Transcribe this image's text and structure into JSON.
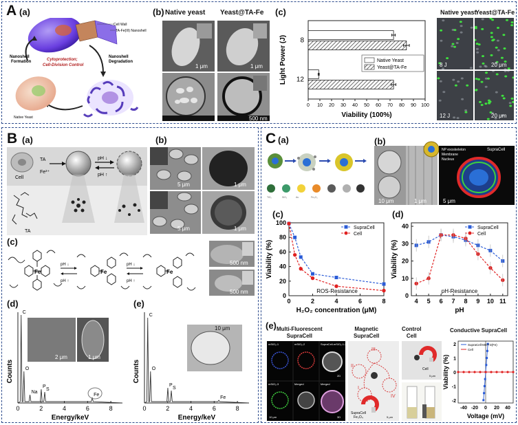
{
  "panelA": {
    "letter": "A",
    "a_label": "(a)",
    "b_label": "(b)",
    "c_label": "(c)",
    "cell_wall": "Cell Wall",
    "nanoshell": "TA-Fe(III) Nanoshell",
    "formation": "Nanoshell\nFormation",
    "degradation": "Nanoshell\nDegradation",
    "cyto": "Cytoprotection;\nCell-Division Control",
    "native_yeast_label": "Native Yeast",
    "b_native": "Native yeast",
    "b_ta": "Yeast@TA-Fe",
    "scale_1um": "1 μm",
    "scale_500nm": "500 nm",
    "fl_native": "Native yeast",
    "fl_ta": "Yeast@TA-Fe",
    "fl_8j": "8 J",
    "fl_12j": "12 J",
    "scale_20um": "20 μm"
  },
  "panelB": {
    "letter": "B",
    "a_label": "(a)",
    "b_label": "(b)",
    "c_label": "(c)",
    "d_label": "(d)",
    "e_label": "(e)",
    "ta": "TA",
    "fe": "Fe",
    "cell": "Cell",
    "ph_down": "pH ↓",
    "ph_up": "pH ↑",
    "scale_5um": "5 μm",
    "scale_1um": "1 μm",
    "scale_500nm": "500 nm",
    "scale_2um": "2 μm",
    "scale_10um": "10 μm",
    "counts": "Counts",
    "energy": "Energy/keV",
    "eds_c": "C",
    "eds_o": "O",
    "eds_na": "Na",
    "eds_p": "P",
    "eds_s": "S",
    "eds_fe": "Fe",
    "ticks": [
      "0",
      "2",
      "4",
      "6",
      "8"
    ]
  },
  "panelC": {
    "letter": "C",
    "a_label": "(a)",
    "b_label": "(b)",
    "c_label": "(c)",
    "d_label": "(d)",
    "e_label": "(e)",
    "supracell_tag": "SupraCell",
    "np_exo": "NP exoskeleton",
    "membrane": "Membrane",
    "nucleus": "Nucleus",
    "scale_5um": "5 μm",
    "scale_10um": "10 μm",
    "scale_1um": "1 μm",
    "e_multi": "Multi-Fluorescent\nSupraCell",
    "e_magnetic": "Magnetic\nSupraCell",
    "e_control": "Control\nCell",
    "e_conductive": "Conductive SupraCell",
    "mag_cell": "SupraCell\nFe₃O₄",
    "roman": [
      "I",
      "II",
      "III",
      "IV"
    ]
  },
  "chart_data": [
    {
      "id": "A-c",
      "type": "bar",
      "orientation": "horizontal",
      "categories": [
        "8",
        "12"
      ],
      "series": [
        {
          "name": "Native Yeast",
          "values": [
            73,
            9
          ],
          "errors": [
            1.5,
            0.5
          ],
          "color": "#ffffff"
        },
        {
          "name": "Yeast@TA-Fe",
          "values": [
            84,
            73
          ],
          "errors": [
            2.5,
            2
          ]
        }
      ],
      "xlabel": "Viability (100%)",
      "ylabel": "Light Power (J)",
      "xlim": [
        0,
        100
      ],
      "xticks": [
        "0",
        "10",
        "20",
        "30",
        "40",
        "50",
        "60",
        "70",
        "80",
        "90",
        "100"
      ],
      "legend": "center-right"
    },
    {
      "id": "C-c",
      "type": "line",
      "x": [
        0,
        0.5,
        1,
        2,
        4,
        8
      ],
      "series": [
        {
          "name": "SupraCell",
          "values": [
            99,
            80,
            53,
            30,
            25,
            16
          ],
          "color": "#2a5bd7"
        },
        {
          "name": "Cell",
          "values": [
            99,
            56,
            37,
            24,
            13,
            7
          ],
          "color": "#e02020"
        }
      ],
      "xlabel": "H₂O₂ concentration (μM)",
      "ylabel": "Viability (%)",
      "xticks": [
        "0",
        "2",
        "4",
        "6",
        "8"
      ],
      "yticks": [
        "0",
        "20",
        "40",
        "60",
        "80",
        "100"
      ],
      "xlim": [
        0,
        8
      ],
      "ylim": [
        0,
        100
      ],
      "annotation": "ROS-Resistance",
      "legend": "top-right"
    },
    {
      "id": "C-d",
      "type": "line",
      "x": [
        4,
        5,
        6,
        7,
        8,
        9,
        10,
        11
      ],
      "series": [
        {
          "name": "SupraCell",
          "values": [
            29,
            31,
            35,
            34,
            32,
            29,
            26,
            20
          ],
          "color": "#2a5bd7"
        },
        {
          "name": "Cell",
          "values": [
            7,
            10,
            35,
            35,
            33,
            24,
            16,
            9
          ],
          "color": "#e02020"
        }
      ],
      "xlabel": "pH",
      "ylabel": "Viability (%)",
      "xticks": [
        "4",
        "5",
        "6",
        "7",
        "8",
        "9",
        "10",
        "11"
      ],
      "yticks": [
        "0",
        "10",
        "20",
        "30",
        "40"
      ],
      "xlim": [
        3.6,
        11.4
      ],
      "ylim": [
        0,
        42
      ],
      "annotation": "pH-Resistance",
      "legend": "top-right"
    },
    {
      "id": "C-e-conductive",
      "type": "line",
      "series": [
        {
          "name": "SupraCell-MET-3(Fe)",
          "x": [
            -4,
            -3,
            -2,
            -1,
            0,
            1,
            2,
            3,
            4
          ],
          "values": [
            -2,
            -1.5,
            -1,
            -0.5,
            0,
            0.5,
            1,
            1.5,
            2
          ],
          "color": "#2a5bd7"
        },
        {
          "name": "Cell",
          "x": [
            -50,
            -40,
            -30,
            -20,
            -10,
            0,
            10,
            20,
            30,
            40,
            50
          ],
          "values": [
            0,
            0,
            0,
            0,
            0,
            0,
            0,
            0,
            0,
            0,
            0
          ],
          "color": "#e02020"
        }
      ],
      "xlabel": "Voltage (mV)",
      "ylabel": "Viability (%)",
      "xticks": [
        "-40",
        "-20",
        "0",
        "20",
        "40"
      ],
      "yticks": [
        "-2",
        "-1",
        "0",
        "1",
        "2"
      ],
      "xlim": [
        -50,
        50
      ],
      "ylim": [
        -2.2,
        2.2
      ],
      "legend": "top-left"
    }
  ]
}
